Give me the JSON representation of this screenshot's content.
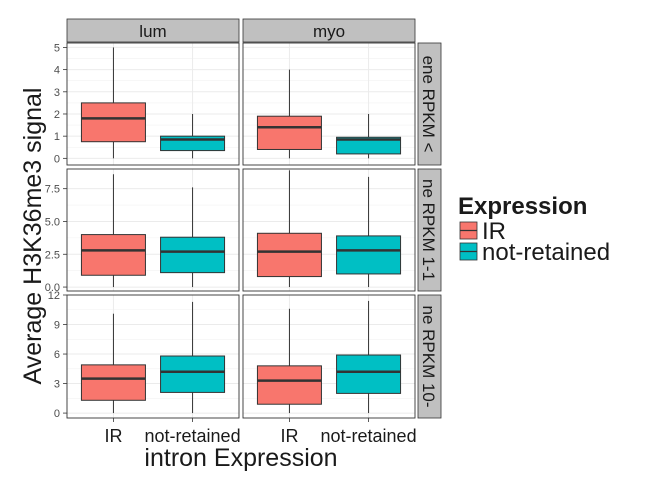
{
  "chart_data": {
    "type": "boxplot",
    "xlabel": "intron Expression",
    "ylabel": "Average H3K36me3 signal",
    "categories": [
      "IR",
      "not-retained"
    ],
    "col_facets": [
      "lum",
      "myo"
    ],
    "row_facets": [
      {
        "label": "ene RPKM <",
        "ylim": [
          -0.3,
          5.2
        ],
        "yticks": [
          0,
          1,
          2,
          3,
          4,
          5
        ],
        "ytick_labels": [
          "0",
          "1",
          "2",
          "3",
          "4",
          "5"
        ]
      },
      {
        "label": "ne RPKM 1-1",
        "ylim": [
          -0.3,
          9.0
        ],
        "yticks": [
          0,
          2.5,
          5,
          7.5
        ],
        "ytick_labels": [
          "0.0",
          "2.5",
          "5.0",
          "7.5"
        ]
      },
      {
        "label": "ne RPKM 10-",
        "ylim": [
          -0.5,
          12.0
        ],
        "yticks": [
          0,
          3,
          6,
          9,
          12
        ],
        "ytick_labels": [
          "0",
          "3",
          "6",
          "9",
          "12"
        ]
      }
    ],
    "series": [
      {
        "name": "IR",
        "color": "#F8766D"
      },
      {
        "name": "not-retained",
        "color": "#00BFC4"
      }
    ],
    "boxes": [
      [
        [
          {
            "whisker_low": 0.0,
            "q1": 0.75,
            "median": 1.8,
            "q3": 2.5,
            "whisker_high": 5.0
          },
          {
            "whisker_low": 0.0,
            "q1": 0.35,
            "median": 0.85,
            "q3": 1.0,
            "whisker_high": 2.0
          }
        ],
        [
          {
            "whisker_low": 0.0,
            "q1": 0.4,
            "median": 1.4,
            "q3": 1.9,
            "whisker_high": 4.0
          },
          {
            "whisker_low": 0.0,
            "q1": 0.2,
            "median": 0.85,
            "q3": 0.95,
            "whisker_high": 2.0
          }
        ]
      ],
      [
        [
          {
            "whisker_low": 0.0,
            "q1": 0.9,
            "median": 2.8,
            "q3": 4.0,
            "whisker_high": 8.6
          },
          {
            "whisker_low": 0.0,
            "q1": 1.1,
            "median": 2.7,
            "q3": 3.8,
            "whisker_high": 7.6
          }
        ],
        [
          {
            "whisker_low": 0.0,
            "q1": 0.8,
            "median": 2.7,
            "q3": 4.1,
            "whisker_high": 8.9
          },
          {
            "whisker_low": 0.0,
            "q1": 1.0,
            "median": 2.8,
            "q3": 3.9,
            "whisker_high": 8.4
          }
        ]
      ],
      [
        [
          {
            "whisker_low": 0.0,
            "q1": 1.3,
            "median": 3.5,
            "q3": 4.9,
            "whisker_high": 10.1
          },
          {
            "whisker_low": 0.0,
            "q1": 2.1,
            "median": 4.2,
            "q3": 5.8,
            "whisker_high": 11.3
          }
        ],
        [
          {
            "whisker_low": 0.0,
            "q1": 0.9,
            "median": 3.3,
            "q3": 4.8,
            "whisker_high": 10.6
          },
          {
            "whisker_low": 0.0,
            "q1": 2.0,
            "median": 4.2,
            "q3": 5.9,
            "whisker_high": 11.4
          }
        ]
      ]
    ],
    "legend": {
      "title": "Expression",
      "position": "right",
      "items": [
        "IR",
        "not-retained"
      ]
    },
    "grid": true,
    "theme": "bw"
  }
}
